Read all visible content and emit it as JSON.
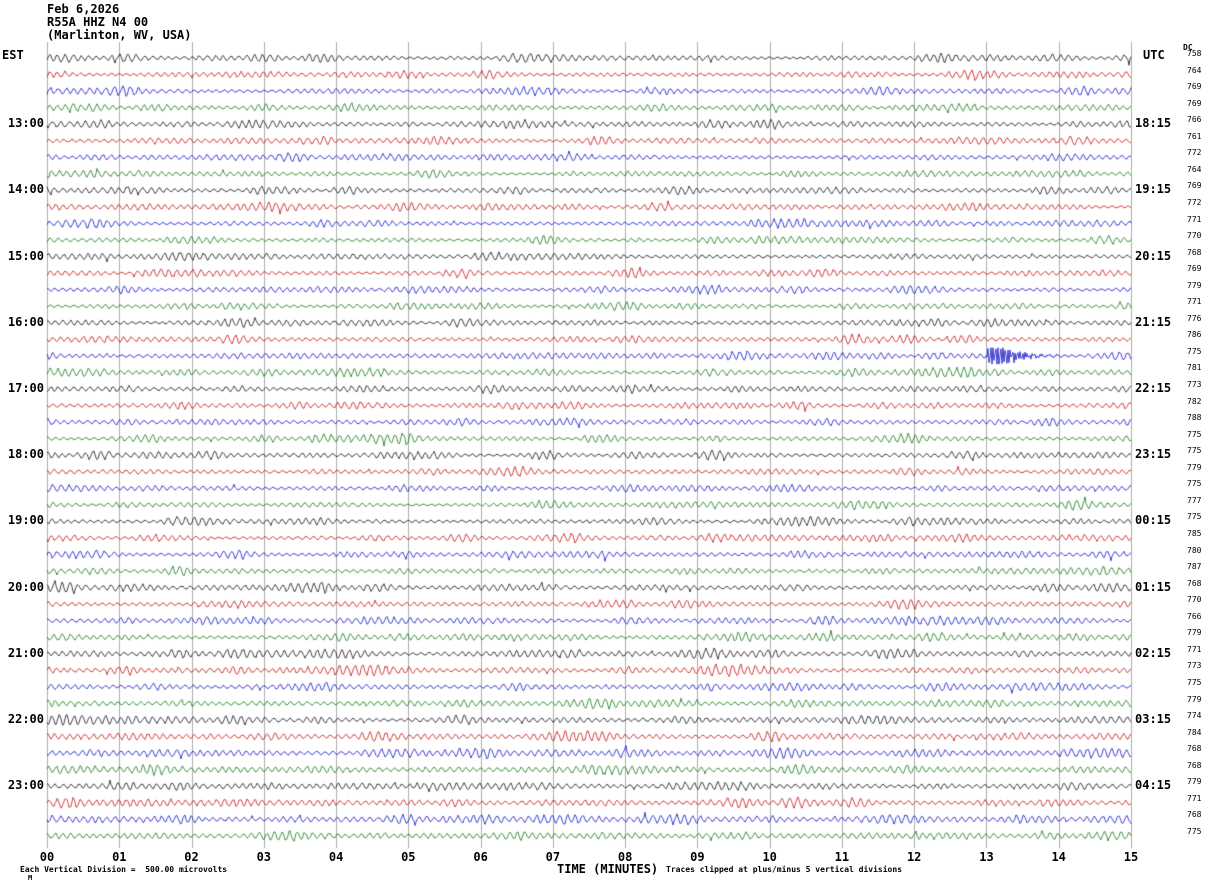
{
  "header": {
    "date": "Feb 6,2026",
    "station": "R55A HHZ N4 00",
    "location": "(Marlinton, WV, USA)"
  },
  "axes": {
    "left_label": "EST",
    "right_label": "UTC",
    "dc_label": "DC",
    "x_title": "TIME (MINUTES)",
    "x_ticks": [
      "00",
      "01",
      "02",
      "03",
      "04",
      "05",
      "06",
      "07",
      "08",
      "09",
      "10",
      "11",
      "12",
      "13",
      "14",
      "15"
    ]
  },
  "footer": {
    "left": "Each Vertical Division =  500.00 microvolts",
    "center": "TIME (MINUTES)",
    "right": "Traces clipped at plus/minus 5 vertical divisions",
    "corner_mark": "M"
  },
  "chart_data": {
    "type": "line",
    "subtype": "helicorder-seismogram",
    "title": "R55A HHZ N4 00 (Marlinton, WV, USA) Feb 6,2026",
    "xlabel": "TIME (MINUTES)",
    "x_range": [
      0,
      15
    ],
    "minutes_per_row": 15,
    "rows_count": 48,
    "grid": "vertical-only",
    "clip_divisions": 5,
    "microvolts_per_division": 500.0,
    "trace_colors": {
      "black": "#000000",
      "red": "#c00000",
      "blue": "#0000c0",
      "green": "#007000"
    },
    "color_cycle": [
      "black",
      "red",
      "blue",
      "green"
    ],
    "description": "Continuous microseismic background noise traces; amplitudes estimated, waveforms procedurally regenerated",
    "event": {
      "row_index": 18,
      "row_color": "blue",
      "start_minute": 13.0,
      "duration_minutes": 0.9,
      "relative_amplitude": 22,
      "description": "high-amplitude clipped burst on blue trace below 16:00 EST hour line near minute 13"
    },
    "rows": [
      {
        "est": "",
        "utc": "",
        "dc": 758,
        "color": "black"
      },
      {
        "est": "",
        "utc": "",
        "dc": 764,
        "color": "red"
      },
      {
        "est": "",
        "utc": "",
        "dc": 769,
        "color": "blue"
      },
      {
        "est": "",
        "utc": "",
        "dc": 769,
        "color": "green"
      },
      {
        "est": "13:00",
        "utc": "18:15",
        "dc": 766,
        "color": "black"
      },
      {
        "est": "",
        "utc": "",
        "dc": 761,
        "color": "red"
      },
      {
        "est": "",
        "utc": "",
        "dc": 772,
        "color": "blue"
      },
      {
        "est": "",
        "utc": "",
        "dc": 764,
        "color": "green"
      },
      {
        "est": "14:00",
        "utc": "19:15",
        "dc": 769,
        "color": "black"
      },
      {
        "est": "",
        "utc": "",
        "dc": 772,
        "color": "red"
      },
      {
        "est": "",
        "utc": "",
        "dc": 771,
        "color": "blue"
      },
      {
        "est": "",
        "utc": "",
        "dc": 770,
        "color": "green"
      },
      {
        "est": "15:00",
        "utc": "20:15",
        "dc": 768,
        "color": "black"
      },
      {
        "est": "",
        "utc": "",
        "dc": 769,
        "color": "red"
      },
      {
        "est": "",
        "utc": "",
        "dc": 779,
        "color": "blue"
      },
      {
        "est": "",
        "utc": "",
        "dc": 771,
        "color": "green"
      },
      {
        "est": "16:00",
        "utc": "21:15",
        "dc": 776,
        "color": "black"
      },
      {
        "est": "",
        "utc": "",
        "dc": 786,
        "color": "red"
      },
      {
        "est": "",
        "utc": "",
        "dc": 775,
        "color": "blue"
      },
      {
        "est": "",
        "utc": "",
        "dc": 781,
        "color": "green"
      },
      {
        "est": "17:00",
        "utc": "22:15",
        "dc": 773,
        "color": "black"
      },
      {
        "est": "",
        "utc": "",
        "dc": 782,
        "color": "red"
      },
      {
        "est": "",
        "utc": "",
        "dc": 788,
        "color": "blue"
      },
      {
        "est": "",
        "utc": "",
        "dc": 775,
        "color": "green"
      },
      {
        "est": "18:00",
        "utc": "23:15",
        "dc": 775,
        "color": "black"
      },
      {
        "est": "",
        "utc": "",
        "dc": 779,
        "color": "red"
      },
      {
        "est": "",
        "utc": "",
        "dc": 775,
        "color": "blue"
      },
      {
        "est": "",
        "utc": "",
        "dc": 777,
        "color": "green"
      },
      {
        "est": "19:00",
        "utc": "00:15",
        "dc": 775,
        "color": "black"
      },
      {
        "est": "",
        "utc": "",
        "dc": 785,
        "color": "red"
      },
      {
        "est": "",
        "utc": "",
        "dc": 780,
        "color": "blue"
      },
      {
        "est": "",
        "utc": "",
        "dc": 787,
        "color": "green"
      },
      {
        "est": "20:00",
        "utc": "01:15",
        "dc": 768,
        "color": "black"
      },
      {
        "est": "",
        "utc": "",
        "dc": 770,
        "color": "red"
      },
      {
        "est": "",
        "utc": "",
        "dc": 766,
        "color": "blue"
      },
      {
        "est": "",
        "utc": "",
        "dc": 779,
        "color": "green"
      },
      {
        "est": "21:00",
        "utc": "02:15",
        "dc": 771,
        "color": "black"
      },
      {
        "est": "",
        "utc": "",
        "dc": 773,
        "color": "red"
      },
      {
        "est": "",
        "utc": "",
        "dc": 775,
        "color": "blue"
      },
      {
        "est": "",
        "utc": "",
        "dc": 779,
        "color": "green"
      },
      {
        "est": "22:00",
        "utc": "03:15",
        "dc": 774,
        "color": "black"
      },
      {
        "est": "",
        "utc": "",
        "dc": 784,
        "color": "red"
      },
      {
        "est": "",
        "utc": "",
        "dc": 768,
        "color": "blue"
      },
      {
        "est": "",
        "utc": "",
        "dc": 768,
        "color": "green"
      },
      {
        "est": "23:00",
        "utc": "04:15",
        "dc": 779,
        "color": "black"
      },
      {
        "est": "",
        "utc": "",
        "dc": 771,
        "color": "red"
      },
      {
        "est": "",
        "utc": "",
        "dc": 768,
        "color": "blue"
      },
      {
        "est": "",
        "utc": "",
        "dc": 775,
        "color": "green"
      }
    ]
  }
}
